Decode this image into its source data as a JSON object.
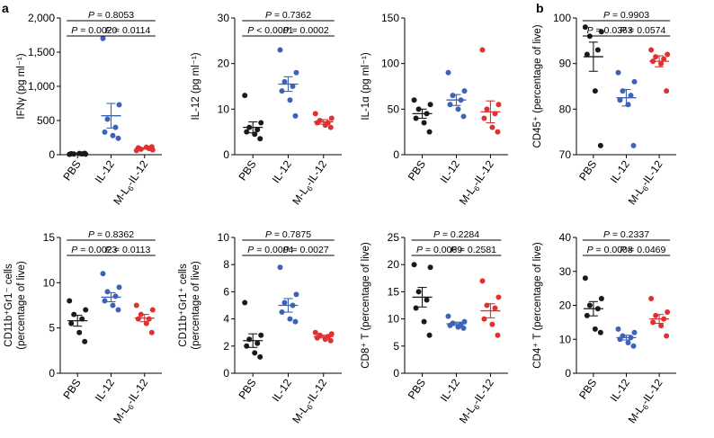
{
  "panel_labels": [
    "a",
    "b"
  ],
  "colors": {
    "PBS": "#1a1a1a",
    "IL-12": "#3c63b8",
    "M-L6-IL-12": "#e03030"
  },
  "chart_data": [
    {
      "type": "scatter",
      "ylabel": "IFNγ (pg ml⁻¹)",
      "categories": [
        "PBS",
        "IL-12",
        "M-L6-IL-12"
      ],
      "ylim": [
        0,
        2000
      ],
      "yticks": [
        0,
        500,
        1000,
        1500,
        2000
      ],
      "ytick_labels": [
        "0",
        "500",
        "1,000",
        "1,500",
        "2,000"
      ],
      "series": [
        {
          "name": "PBS",
          "values": [
            5,
            8,
            10,
            12,
            15,
            18,
            20
          ],
          "mean": 12,
          "sem": 3
        },
        {
          "name": "IL-12",
          "values": [
            1700,
            730,
            520,
            400,
            330,
            280,
            240
          ],
          "mean": 570,
          "sem": 180
        },
        {
          "name": "M-L6-IL-12",
          "values": [
            60,
            70,
            80,
            90,
            100,
            110,
            115
          ],
          "mean": 90,
          "sem": 8
        }
      ],
      "comparisons": [
        {
          "groups": [
            0,
            1
          ],
          "text": "P = 0.0020",
          "level": 0
        },
        {
          "groups": [
            1,
            2
          ],
          "text": "P = 0.0114",
          "level": 0
        },
        {
          "groups": [
            0,
            2
          ],
          "text": "P = 0.8053",
          "level": 1
        }
      ]
    },
    {
      "type": "scatter",
      "ylabel": "IL-12 (pg ml⁻¹)",
      "categories": [
        "PBS",
        "IL-12",
        "M-L6-IL-12"
      ],
      "ylim": [
        0,
        30
      ],
      "yticks": [
        0,
        10,
        20,
        30
      ],
      "ytick_labels": [
        "0",
        "10",
        "20",
        "30"
      ],
      "series": [
        {
          "name": "PBS",
          "values": [
            13,
            7,
            6,
            5.5,
            5,
            4.5,
            3.5
          ],
          "mean": 6,
          "sem": 1.2
        },
        {
          "name": "IL-12",
          "values": [
            23,
            18,
            16,
            15,
            14,
            12,
            8.5
          ],
          "mean": 15.5,
          "sem": 1.6
        },
        {
          "name": "M-L6-IL-12",
          "values": [
            9,
            8,
            7.5,
            7,
            7,
            6.5,
            6
          ],
          "mean": 7.2,
          "sem": 0.5
        }
      ],
      "comparisons": [
        {
          "groups": [
            0,
            1
          ],
          "text": "P < 0.0001",
          "level": 0
        },
        {
          "groups": [
            1,
            2
          ],
          "text": "P = 0.0002",
          "level": 0
        },
        {
          "groups": [
            0,
            2
          ],
          "text": "P = 0.7362",
          "level": 1
        }
      ]
    },
    {
      "type": "scatter",
      "ylabel": "IL-1α (pg ml⁻¹)",
      "categories": [
        "PBS",
        "IL-12",
        "M-L6-IL-12"
      ],
      "ylim": [
        0,
        150
      ],
      "yticks": [
        0,
        50,
        100,
        150
      ],
      "ytick_labels": [
        "0",
        "50",
        "100",
        "150"
      ],
      "series": [
        {
          "name": "PBS",
          "values": [
            60,
            55,
            50,
            45,
            40,
            35,
            25
          ],
          "mean": 45,
          "sem": 5
        },
        {
          "name": "IL-12",
          "values": [
            90,
            70,
            65,
            60,
            55,
            50,
            42
          ],
          "mean": 60,
          "sem": 6
        },
        {
          "name": "M-L6-IL-12",
          "values": [
            115,
            55,
            50,
            45,
            40,
            30,
            25
          ],
          "mean": 47,
          "sem": 12
        }
      ],
      "comparisons": []
    },
    {
      "type": "scatter",
      "ylabel": "CD45⁺ (percentage of live)",
      "categories": [
        "PBS",
        "IL-12",
        "M-L6-IL-12"
      ],
      "ylim": [
        70,
        100
      ],
      "yticks": [
        70,
        80,
        90,
        100
      ],
      "ytick_labels": [
        "70",
        "80",
        "90",
        "100"
      ],
      "series": [
        {
          "name": "PBS",
          "values": [
            98,
            97,
            96,
            93,
            92,
            84,
            72
          ],
          "mean": 91.5,
          "sem": 3.2
        },
        {
          "name": "IL-12",
          "values": [
            88,
            86,
            84,
            83,
            82,
            81,
            72
          ],
          "mean": 82.5,
          "sem": 1.8
        },
        {
          "name": "M-L6-IL-12",
          "values": [
            93,
            92,
            91.5,
            91,
            90.5,
            90,
            84
          ],
          "mean": 90.5,
          "sem": 1.2
        }
      ],
      "comparisons": [
        {
          "groups": [
            0,
            1
          ],
          "text": "P = 0.0363",
          "level": 0
        },
        {
          "groups": [
            1,
            2
          ],
          "text": "P = 0.0574",
          "level": 0
        },
        {
          "groups": [
            0,
            2
          ],
          "text": "P = 0.9903",
          "level": 1
        }
      ]
    },
    {
      "type": "scatter",
      "ylabel": "CD11b⁺Gr1⁻ cells\n(percentage of live)",
      "categories": [
        "PBS",
        "IL-12",
        "M-L6-IL-12"
      ],
      "ylim": [
        0,
        15
      ],
      "yticks": [
        0,
        5,
        10,
        15
      ],
      "ytick_labels": [
        "0",
        "5",
        "10",
        "15"
      ],
      "series": [
        {
          "name": "PBS",
          "values": [
            8,
            7,
            6.5,
            6,
            5.5,
            4.5,
            3.5
          ],
          "mean": 5.8,
          "sem": 0.6
        },
        {
          "name": "IL-12",
          "values": [
            11,
            9.5,
            9,
            8.5,
            8,
            7.5,
            7
          ],
          "mean": 8.4,
          "sem": 0.5
        },
        {
          "name": "M-L6-IL-12",
          "values": [
            7.5,
            7,
            6.5,
            6,
            6,
            5.5,
            4.5
          ],
          "mean": 6.1,
          "sem": 0.4
        }
      ],
      "comparisons": [
        {
          "groups": [
            0,
            1
          ],
          "text": "P = 0.0023",
          "level": 0
        },
        {
          "groups": [
            1,
            2
          ],
          "text": "P = 0.0113",
          "level": 0
        },
        {
          "groups": [
            0,
            2
          ],
          "text": "P = 0.8362",
          "level": 1
        }
      ]
    },
    {
      "type": "scatter",
      "ylabel": "CD11b⁺Gr1⁺ cells\n(percentage of live)",
      "categories": [
        "PBS",
        "IL-12",
        "M-L6-IL-12"
      ],
      "ylim": [
        0,
        10
      ],
      "yticks": [
        0,
        2,
        4,
        6,
        8,
        10
      ],
      "ytick_labels": [
        "0",
        "2",
        "4",
        "6",
        "8",
        "10"
      ],
      "series": [
        {
          "name": "PBS",
          "values": [
            5.2,
            2.8,
            2.5,
            2.2,
            2,
            1.5,
            1.2
          ],
          "mean": 2.4,
          "sem": 0.5
        },
        {
          "name": "IL-12",
          "values": [
            7.8,
            5.8,
            5.2,
            5,
            4.5,
            4,
            3.8
          ],
          "mean": 5,
          "sem": 0.5
        },
        {
          "name": "M-L6-IL-12",
          "values": [
            3,
            2.9,
            2.8,
            2.7,
            2.6,
            2.5,
            2.4
          ],
          "mean": 2.7,
          "sem": 0.1
        }
      ],
      "comparisons": [
        {
          "groups": [
            0,
            1
          ],
          "text": "P = 0.0004",
          "level": 0
        },
        {
          "groups": [
            1,
            2
          ],
          "text": "P = 0.0027",
          "level": 0
        },
        {
          "groups": [
            0,
            2
          ],
          "text": "P = 0.7875",
          "level": 1
        }
      ]
    },
    {
      "type": "scatter",
      "ylabel": "CD8⁺ T (percentage of live)",
      "categories": [
        "PBS",
        "IL-12",
        "M-L6-IL-12"
      ],
      "ylim": [
        0,
        25
      ],
      "yticks": [
        0,
        5,
        10,
        15,
        20,
        25
      ],
      "ytick_labels": [
        "0",
        "5",
        "10",
        "15",
        "20",
        "25"
      ],
      "series": [
        {
          "name": "PBS",
          "values": [
            20,
            19.5,
            15,
            13.5,
            12,
            9.5,
            7
          ],
          "mean": 14,
          "sem": 1.8
        },
        {
          "name": "IL-12",
          "values": [
            10.5,
            9.5,
            9.2,
            9,
            8.8,
            8.5,
            8.3
          ],
          "mean": 9.1,
          "sem": 0.3
        },
        {
          "name": "M-L6-IL-12",
          "values": [
            17,
            14,
            12.5,
            12,
            10,
            9,
            7
          ],
          "mean": 11.5,
          "sem": 1.3
        }
      ],
      "comparisons": [
        {
          "groups": [
            0,
            1
          ],
          "text": "P = 0.0069",
          "level": 0
        },
        {
          "groups": [
            1,
            2
          ],
          "text": "P = 0.2581",
          "level": 0
        },
        {
          "groups": [
            0,
            2
          ],
          "text": "P = 0.2284",
          "level": 1
        }
      ]
    },
    {
      "type": "scatter",
      "ylabel": "CD4⁺ T (percentage of live)",
      "categories": [
        "PBS",
        "IL-12",
        "M-L6-IL-12"
      ],
      "ylim": [
        0,
        40
      ],
      "yticks": [
        0,
        10,
        20,
        30,
        40
      ],
      "ytick_labels": [
        "0",
        "10",
        "20",
        "30",
        "40"
      ],
      "series": [
        {
          "name": "PBS",
          "values": [
            28,
            22,
            20,
            19,
            17,
            13,
            12
          ],
          "mean": 19,
          "sem": 2.1
        },
        {
          "name": "IL-12",
          "values": [
            13,
            12,
            11,
            10.5,
            10,
            9,
            8
          ],
          "mean": 10.5,
          "sem": 0.7
        },
        {
          "name": "M-L6-IL-12",
          "values": [
            22,
            18,
            17,
            16,
            15,
            14,
            11
          ],
          "mean": 16,
          "sem": 1.3
        }
      ],
      "comparisons": [
        {
          "groups": [
            0,
            1
          ],
          "text": "P = 0.0008",
          "level": 0
        },
        {
          "groups": [
            1,
            2
          ],
          "text": "P = 0.0469",
          "level": 0
        },
        {
          "groups": [
            0,
            2
          ],
          "text": "P = 0.2337",
          "level": 1
        }
      ]
    }
  ]
}
